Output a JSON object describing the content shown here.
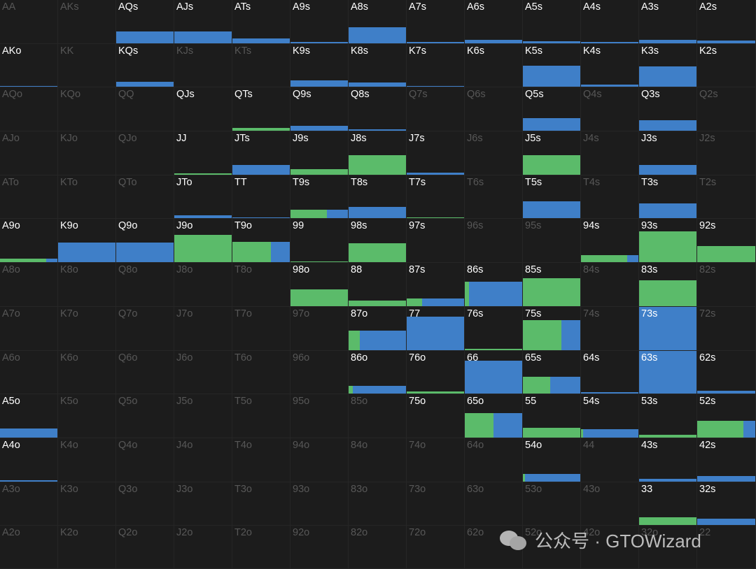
{
  "colors": {
    "green": "#5bbb6a",
    "blue": "#3f7fc8",
    "bg": "#1c1c1c",
    "active_text": "#ffffff",
    "inactive_text": "#575757"
  },
  "watermark": {
    "icon": "wechat-icon",
    "text": "公众号 · GTOWizard"
  },
  "grid": [
    [
      {
        "hand": "AA",
        "active": false
      },
      {
        "hand": "AKs",
        "active": false
      },
      {
        "hand": "AQs",
        "active": true,
        "level": 0.27,
        "green": 0,
        "blue": 1
      },
      {
        "hand": "AJs",
        "active": true,
        "level": 0.27,
        "green": 0,
        "blue": 1
      },
      {
        "hand": "ATs",
        "active": true,
        "level": 0.11,
        "green": 0,
        "blue": 1
      },
      {
        "hand": "A9s",
        "active": true,
        "level": 0.02,
        "green": 0,
        "blue": 1
      },
      {
        "hand": "A8s",
        "active": true,
        "level": 0.36,
        "green": 0,
        "blue": 1
      },
      {
        "hand": "A7s",
        "active": true,
        "level": 0.03,
        "green": 0,
        "blue": 1
      },
      {
        "hand": "A6s",
        "active": true,
        "level": 0.07,
        "green": 0,
        "blue": 1
      },
      {
        "hand": "A5s",
        "active": true,
        "level": 0.05,
        "green": 0,
        "blue": 1
      },
      {
        "hand": "A4s",
        "active": true,
        "level": 0.02,
        "green": 0,
        "blue": 1
      },
      {
        "hand": "A3s",
        "active": true,
        "level": 0.08,
        "green": 0,
        "blue": 1
      },
      {
        "hand": "A2s",
        "active": true,
        "level": 0.06,
        "green": 0,
        "blue": 1
      }
    ],
    [
      {
        "hand": "AKo",
        "active": true,
        "level": 0.02,
        "green": 0,
        "blue": 1
      },
      {
        "hand": "KK",
        "active": false
      },
      {
        "hand": "KQs",
        "active": true,
        "level": 0.12,
        "green": 0,
        "blue": 1
      },
      {
        "hand": "KJs",
        "active": false
      },
      {
        "hand": "KTs",
        "active": false
      },
      {
        "hand": "K9s",
        "active": true,
        "level": 0.15,
        "green": 0,
        "blue": 1
      },
      {
        "hand": "K8s",
        "active": true,
        "level": 0.1,
        "green": 0,
        "blue": 1
      },
      {
        "hand": "K7s",
        "active": true,
        "level": 0.02,
        "green": 0,
        "blue": 1
      },
      {
        "hand": "K6s",
        "active": true,
        "level": 0,
        "green": 0,
        "blue": 0
      },
      {
        "hand": "K5s",
        "active": true,
        "level": 0.5,
        "green": 0,
        "blue": 1
      },
      {
        "hand": "K4s",
        "active": true,
        "level": 0.05,
        "green": 0,
        "blue": 1
      },
      {
        "hand": "K3s",
        "active": true,
        "level": 0.48,
        "green": 0,
        "blue": 1
      },
      {
        "hand": "K2s",
        "active": true,
        "level": 0,
        "green": 0,
        "blue": 0
      }
    ],
    [
      {
        "hand": "AQo",
        "active": false
      },
      {
        "hand": "KQo",
        "active": false
      },
      {
        "hand": "QQ",
        "active": false
      },
      {
        "hand": "QJs",
        "active": true,
        "level": 0,
        "green": 0,
        "blue": 0
      },
      {
        "hand": "QTs",
        "active": true,
        "level": 0.06,
        "green": 1,
        "blue": 0
      },
      {
        "hand": "Q9s",
        "active": true,
        "level": 0.12,
        "green": 0,
        "blue": 1
      },
      {
        "hand": "Q8s",
        "active": true,
        "level": 0.03,
        "green": 0,
        "blue": 1
      },
      {
        "hand": "Q7s",
        "active": false
      },
      {
        "hand": "Q6s",
        "active": false
      },
      {
        "hand": "Q5s",
        "active": true,
        "level": 0.29,
        "green": 0,
        "blue": 1
      },
      {
        "hand": "Q4s",
        "active": false
      },
      {
        "hand": "Q3s",
        "active": true,
        "level": 0.24,
        "green": 0,
        "blue": 1
      },
      {
        "hand": "Q2s",
        "active": false
      }
    ],
    [
      {
        "hand": "AJo",
        "active": false
      },
      {
        "hand": "KJo",
        "active": false
      },
      {
        "hand": "QJo",
        "active": false
      },
      {
        "hand": "JJ",
        "active": true,
        "level": 0.03,
        "green": 1,
        "blue": 0
      },
      {
        "hand": "JTs",
        "active": true,
        "level": 0.22,
        "green": 0,
        "blue": 1
      },
      {
        "hand": "J9s",
        "active": true,
        "level": 0.12,
        "green": 1,
        "blue": 0
      },
      {
        "hand": "J8s",
        "active": true,
        "level": 0.45,
        "green": 1,
        "blue": 0
      },
      {
        "hand": "J7s",
        "active": true,
        "level": 0.05,
        "green": 0,
        "blue": 1
      },
      {
        "hand": "J6s",
        "active": false
      },
      {
        "hand": "J5s",
        "active": true,
        "level": 0.45,
        "green": 1,
        "blue": 0
      },
      {
        "hand": "J4s",
        "active": false
      },
      {
        "hand": "J3s",
        "active": true,
        "level": 0.22,
        "green": 0,
        "blue": 1
      },
      {
        "hand": "J2s",
        "active": false
      }
    ],
    [
      {
        "hand": "ATo",
        "active": false
      },
      {
        "hand": "KTo",
        "active": false
      },
      {
        "hand": "QTo",
        "active": false
      },
      {
        "hand": "JTo",
        "active": true,
        "level": 0.08,
        "green": 0,
        "blue": 1
      },
      {
        "hand": "TT",
        "active": true,
        "level": 0.03,
        "green": 0,
        "blue": 1
      },
      {
        "hand": "T9s",
        "active": true,
        "level": 0.2,
        "green": 0.63,
        "blue": 0.37
      },
      {
        "hand": "T8s",
        "active": true,
        "level": 0.26,
        "green": 0,
        "blue": 1
      },
      {
        "hand": "T7s",
        "active": true,
        "level": 0.02,
        "green": 1,
        "blue": 0
      },
      {
        "hand": "T6s",
        "active": false
      },
      {
        "hand": "T5s",
        "active": true,
        "level": 0.4,
        "green": 0,
        "blue": 1
      },
      {
        "hand": "T4s",
        "active": false
      },
      {
        "hand": "T3s",
        "active": true,
        "level": 0.34,
        "green": 0,
        "blue": 1
      },
      {
        "hand": "T2s",
        "active": false
      }
    ],
    [
      {
        "hand": "A9o",
        "active": true,
        "level": 0.08,
        "green": 0.8,
        "blue": 0.2
      },
      {
        "hand": "K9o",
        "active": true,
        "level": 0.45,
        "green": 0,
        "blue": 1
      },
      {
        "hand": "Q9o",
        "active": true,
        "level": 0.45,
        "green": 0,
        "blue": 1
      },
      {
        "hand": "J9o",
        "active": true,
        "level": 0.64,
        "green": 1,
        "blue": 0
      },
      {
        "hand": "T9o",
        "active": true,
        "level": 0.47,
        "green": 0.67,
        "blue": 0.33
      },
      {
        "hand": "99",
        "active": true,
        "level": 0.01,
        "green": 1,
        "blue": 0
      },
      {
        "hand": "98s",
        "active": true,
        "level": 0.44,
        "green": 1,
        "blue": 0
      },
      {
        "hand": "97s",
        "active": true,
        "level": 0,
        "green": 0,
        "blue": 0
      },
      {
        "hand": "96s",
        "active": false
      },
      {
        "hand": "95s",
        "active": false
      },
      {
        "hand": "94s",
        "active": true,
        "level": 0.17,
        "green": 0.8,
        "blue": 0.2
      },
      {
        "hand": "93s",
        "active": true,
        "level": 0.71,
        "green": 1,
        "blue": 0
      },
      {
        "hand": "92s",
        "active": true,
        "level": 0.38,
        "green": 1,
        "blue": 0
      }
    ],
    [
      {
        "hand": "A8o",
        "active": false
      },
      {
        "hand": "K8o",
        "active": false
      },
      {
        "hand": "Q8o",
        "active": false
      },
      {
        "hand": "J8o",
        "active": false
      },
      {
        "hand": "T8o",
        "active": false
      },
      {
        "hand": "98o",
        "active": true,
        "level": 0.38,
        "green": 1,
        "blue": 0
      },
      {
        "hand": "88",
        "active": true,
        "level": 0.12,
        "green": 1,
        "blue": 0
      },
      {
        "hand": "87s",
        "active": true,
        "level": 0.17,
        "green": 0.27,
        "blue": 0.73
      },
      {
        "hand": "86s",
        "active": true,
        "level": 0.56,
        "green": 0.07,
        "blue": 0.93
      },
      {
        "hand": "85s",
        "active": true,
        "level": 0.65,
        "green": 1,
        "blue": 0
      },
      {
        "hand": "84s",
        "active": false
      },
      {
        "hand": "83s",
        "active": true,
        "level": 0.6,
        "green": 1,
        "blue": 0
      },
      {
        "hand": "82s",
        "active": false
      }
    ],
    [
      {
        "hand": "A7o",
        "active": false
      },
      {
        "hand": "K7o",
        "active": false
      },
      {
        "hand": "Q7o",
        "active": false
      },
      {
        "hand": "J7o",
        "active": false
      },
      {
        "hand": "T7o",
        "active": false
      },
      {
        "hand": "97o",
        "active": false
      },
      {
        "hand": "87o",
        "active": true,
        "level": 0.44,
        "green": 0.2,
        "blue": 0.8
      },
      {
        "hand": "77",
        "active": true,
        "level": 0.77,
        "green": 0,
        "blue": 1
      },
      {
        "hand": "76s",
        "active": true,
        "level": 0.01,
        "green": 1,
        "blue": 0
      },
      {
        "hand": "75s",
        "active": true,
        "level": 0.69,
        "green": 0.67,
        "blue": 0.33
      },
      {
        "hand": "74s",
        "active": false
      },
      {
        "hand": "73s",
        "active": true,
        "level": 1,
        "green": 0,
        "blue": 1
      },
      {
        "hand": "72s",
        "active": false
      }
    ],
    [
      {
        "hand": "A6o",
        "active": false
      },
      {
        "hand": "K6o",
        "active": false
      },
      {
        "hand": "Q6o",
        "active": false
      },
      {
        "hand": "J6o",
        "active": false
      },
      {
        "hand": "T6o",
        "active": false
      },
      {
        "hand": "96o",
        "active": false
      },
      {
        "hand": "86o",
        "active": true,
        "level": 0.18,
        "green": 0.07,
        "blue": 0.93
      },
      {
        "hand": "76o",
        "active": true,
        "level": 0.06,
        "green": 1,
        "blue": 0
      },
      {
        "hand": "66",
        "active": true,
        "level": 0.77,
        "green": 0,
        "blue": 1
      },
      {
        "hand": "65s",
        "active": true,
        "level": 0.4,
        "green": 0.48,
        "blue": 0.52
      },
      {
        "hand": "64s",
        "active": true,
        "level": 0.03,
        "green": 0,
        "blue": 1
      },
      {
        "hand": "63s",
        "active": true,
        "level": 1,
        "green": 0,
        "blue": 1
      },
      {
        "hand": "62s",
        "active": true,
        "level": 0.07,
        "green": 0,
        "blue": 1
      }
    ],
    [
      {
        "hand": "A5o",
        "active": true,
        "level": 0.21,
        "green": 0,
        "blue": 1
      },
      {
        "hand": "K5o",
        "active": false
      },
      {
        "hand": "Q5o",
        "active": false
      },
      {
        "hand": "J5o",
        "active": false
      },
      {
        "hand": "T5o",
        "active": false
      },
      {
        "hand": "95o",
        "active": false
      },
      {
        "hand": "85o",
        "active": false
      },
      {
        "hand": "75o",
        "active": true,
        "level": 0,
        "green": 0,
        "blue": 0
      },
      {
        "hand": "65o",
        "active": true,
        "level": 0.56,
        "green": 0.5,
        "blue": 0.5
      },
      {
        "hand": "55",
        "active": true,
        "level": 0.22,
        "green": 1,
        "blue": 0
      },
      {
        "hand": "54s",
        "active": true,
        "level": 0.19,
        "green": 0.04,
        "blue": 0.96
      },
      {
        "hand": "53s",
        "active": true,
        "level": 0.06,
        "green": 1,
        "blue": 0
      },
      {
        "hand": "52s",
        "active": true,
        "level": 0.39,
        "green": 0.8,
        "blue": 0.2
      }
    ],
    [
      {
        "hand": "A4o",
        "active": true,
        "level": 0.02,
        "green": 0,
        "blue": 1
      },
      {
        "hand": "K4o",
        "active": false
      },
      {
        "hand": "Q4o",
        "active": false
      },
      {
        "hand": "J4o",
        "active": false
      },
      {
        "hand": "T4o",
        "active": false
      },
      {
        "hand": "94o",
        "active": false
      },
      {
        "hand": "84o",
        "active": false
      },
      {
        "hand": "74o",
        "active": false
      },
      {
        "hand": "64o",
        "active": false
      },
      {
        "hand": "54o",
        "active": true,
        "level": 0.17,
        "green": 0.04,
        "blue": 0.96
      },
      {
        "hand": "44",
        "active": false
      },
      {
        "hand": "43s",
        "active": true,
        "level": 0.05,
        "green": 0,
        "blue": 1
      },
      {
        "hand": "42s",
        "active": true,
        "level": 0.12,
        "green": 0,
        "blue": 1
      }
    ],
    [
      {
        "hand": "A3o",
        "active": false
      },
      {
        "hand": "K3o",
        "active": false
      },
      {
        "hand": "Q3o",
        "active": false
      },
      {
        "hand": "J3o",
        "active": false
      },
      {
        "hand": "T3o",
        "active": false
      },
      {
        "hand": "93o",
        "active": false
      },
      {
        "hand": "83o",
        "active": false
      },
      {
        "hand": "73o",
        "active": false
      },
      {
        "hand": "63o",
        "active": false
      },
      {
        "hand": "53o",
        "active": false
      },
      {
        "hand": "43o",
        "active": false
      },
      {
        "hand": "33",
        "active": true,
        "level": 0.19,
        "green": 1,
        "blue": 0
      },
      {
        "hand": "32s",
        "active": true,
        "level": 0.15,
        "green": 0,
        "blue": 1
      }
    ],
    [
      {
        "hand": "A2o",
        "active": false
      },
      {
        "hand": "K2o",
        "active": false
      },
      {
        "hand": "Q2o",
        "active": false
      },
      {
        "hand": "J2o",
        "active": false
      },
      {
        "hand": "T2o",
        "active": false
      },
      {
        "hand": "92o",
        "active": false
      },
      {
        "hand": "82o",
        "active": false
      },
      {
        "hand": "72o",
        "active": false
      },
      {
        "hand": "62o",
        "active": false
      },
      {
        "hand": "52o",
        "active": false
      },
      {
        "hand": "42o",
        "active": false
      },
      {
        "hand": "32o",
        "active": false
      },
      {
        "hand": "22",
        "active": false
      }
    ]
  ]
}
